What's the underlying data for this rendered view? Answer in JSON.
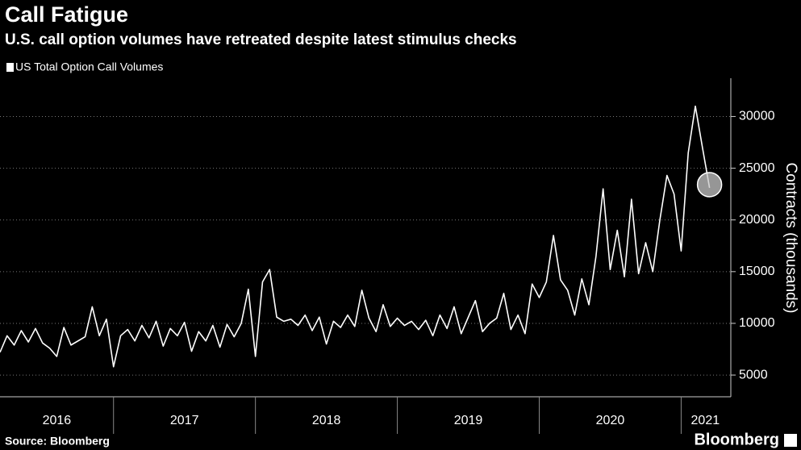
{
  "chart_data": {
    "type": "line",
    "title": "Call Fatigue",
    "subtitle": "U.S. call option volumes have retreated despite latest stimulus checks",
    "source": "Source: Bloomberg",
    "brand": "Bloomberg",
    "y_axis_label": "Contracts (thousands)",
    "legend": "top-left",
    "grid": true,
    "xlim": [
      2016.2,
      2021.35
    ],
    "xticks": [
      {
        "value": 2016.6,
        "label": "2016"
      },
      {
        "value": 2017.5,
        "label": "2017"
      },
      {
        "value": 2018.5,
        "label": "2018"
      },
      {
        "value": 2019.5,
        "label": "2019"
      },
      {
        "value": 2020.5,
        "label": "2020"
      },
      {
        "value": 2021.17,
        "label": "2021"
      }
    ],
    "ylim": [
      2900,
      33700
    ],
    "yticks": [
      5000,
      10000,
      15000,
      20000,
      25000,
      30000
    ],
    "x": [
      2016.2,
      2016.25,
      2016.3,
      2016.35,
      2016.4,
      2016.45,
      2016.5,
      2016.55,
      2016.6,
      2016.65,
      2016.7,
      2016.75,
      2016.8,
      2016.85,
      2016.9,
      2016.95,
      2017.0,
      2017.05,
      2017.1,
      2017.15,
      2017.2,
      2017.25,
      2017.3,
      2017.35,
      2017.4,
      2017.45,
      2017.5,
      2017.55,
      2017.6,
      2017.65,
      2017.7,
      2017.75,
      2017.8,
      2017.85,
      2017.9,
      2017.95,
      2018.0,
      2018.05,
      2018.1,
      2018.15,
      2018.2,
      2018.25,
      2018.3,
      2018.35,
      2018.4,
      2018.45,
      2018.5,
      2018.55,
      2018.6,
      2018.65,
      2018.7,
      2018.75,
      2018.8,
      2018.85,
      2018.9,
      2018.95,
      2019.0,
      2019.05,
      2019.1,
      2019.15,
      2019.2,
      2019.25,
      2019.3,
      2019.35,
      2019.4,
      2019.45,
      2019.5,
      2019.55,
      2019.6,
      2019.65,
      2019.7,
      2019.75,
      2019.8,
      2019.85,
      2019.9,
      2019.95,
      2020.0,
      2020.05,
      2020.1,
      2020.15,
      2020.2,
      2020.25,
      2020.3,
      2020.35,
      2020.4,
      2020.45,
      2020.5,
      2020.55,
      2020.6,
      2020.65,
      2020.7,
      2020.75,
      2020.8,
      2020.85,
      2020.9,
      2020.95,
      2021.0,
      2021.05,
      2021.1,
      2021.15,
      2021.2
    ],
    "series": [
      {
        "name": "US Total Option Call Volumes",
        "color": "#ffffff",
        "values": [
          7200,
          8800,
          7900,
          9300,
          8200,
          9500,
          8100,
          7600,
          6800,
          9600,
          7900,
          8300,
          8700,
          11600,
          8800,
          10400,
          5800,
          8800,
          9400,
          8300,
          9800,
          8600,
          10200,
          7800,
          9500,
          8800,
          10100,
          7300,
          9200,
          8300,
          9800,
          7700,
          9900,
          8700,
          10000,
          13300,
          6800,
          14000,
          15200,
          10600,
          10200,
          10400,
          9800,
          10800,
          9300,
          10600,
          8000,
          10200,
          9600,
          10800,
          9700,
          13200,
          10500,
          9200,
          11800,
          9700,
          10500,
          9800,
          10200,
          9400,
          10300,
          8800,
          10800,
          9500,
          11600,
          9000,
          10600,
          12200,
          9200,
          10000,
          10500,
          12900,
          9400,
          10800,
          9000,
          13800,
          12500,
          14000,
          18500,
          14200,
          13200,
          10800,
          14300,
          11800,
          16500,
          23000,
          15200,
          19000,
          14500,
          22000,
          14800,
          17800,
          15000,
          20000,
          24300,
          22500,
          17000,
          26500,
          31000,
          27000,
          23100
        ]
      }
    ]
  }
}
